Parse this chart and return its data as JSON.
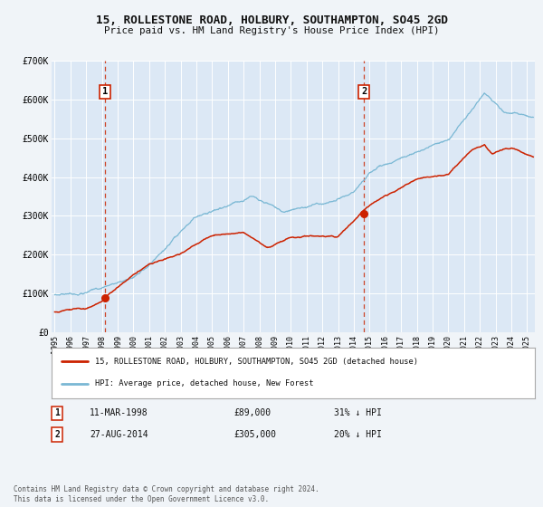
{
  "title": "15, ROLLESTONE ROAD, HOLBURY, SOUTHAMPTON, SO45 2GD",
  "subtitle": "Price paid vs. HM Land Registry's House Price Index (HPI)",
  "bg_color": "#f0f4f8",
  "plot_bg_color": "#dce8f5",
  "grid_color": "#ffffff",
  "red_line_label": "15, ROLLESTONE ROAD, HOLBURY, SOUTHAMPTON, SO45 2GD (detached house)",
  "blue_line_label": "HPI: Average price, detached house, New Forest",
  "legend_entry1_date": "11-MAR-1998",
  "legend_entry1_price": "£89,000",
  "legend_entry1_hpi": "31% ↓ HPI",
  "legend_entry2_date": "27-AUG-2014",
  "legend_entry2_price": "£305,000",
  "legend_entry2_hpi": "20% ↓ HPI",
  "copyright_text": "Contains HM Land Registry data © Crown copyright and database right 2024.\nThis data is licensed under the Open Government Licence v3.0.",
  "sale1_year": 1998.19,
  "sale1_price": 89000,
  "sale2_year": 2014.65,
  "sale2_price": 305000,
  "vline1_year": 1998.19,
  "vline2_year": 2014.65,
  "ylim": [
    0,
    700000
  ],
  "xlim_start": 1994.8,
  "xlim_end": 2025.5,
  "yticks": [
    0,
    100000,
    200000,
    300000,
    400000,
    500000,
    600000,
    700000
  ],
  "ytick_labels": [
    "£0",
    "£100K",
    "£200K",
    "£300K",
    "£400K",
    "£500K",
    "£600K",
    "£700K"
  ],
  "xtick_years": [
    1995,
    1996,
    1997,
    1998,
    1999,
    2000,
    2001,
    2002,
    2003,
    2004,
    2005,
    2006,
    2007,
    2008,
    2009,
    2010,
    2011,
    2012,
    2013,
    2014,
    2015,
    2016,
    2017,
    2018,
    2019,
    2020,
    2021,
    2022,
    2023,
    2024,
    2025
  ],
  "red_color": "#cc2200",
  "blue_color": "#7ab8d4",
  "vline_color": "#cc3311"
}
